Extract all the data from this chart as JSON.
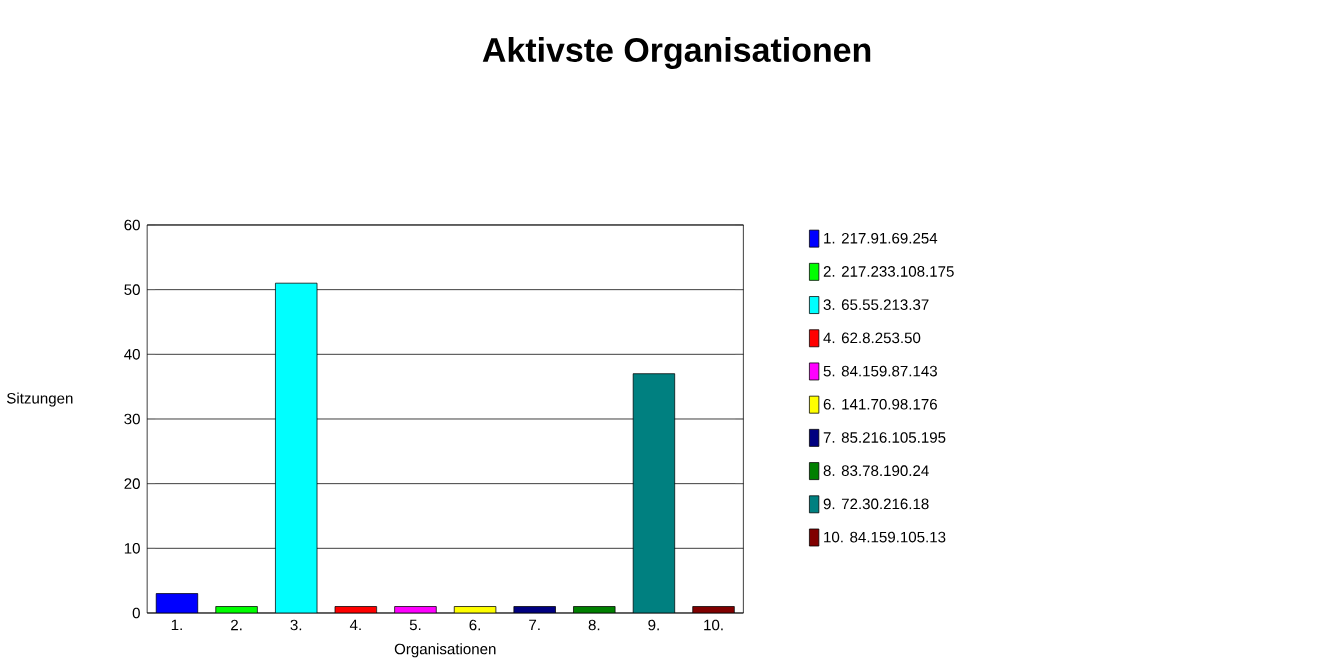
{
  "chart_data": {
    "type": "bar",
    "title": "Aktivste Organisationen",
    "xlabel": "Organisationen",
    "ylabel": "Sitzungen",
    "categories": [
      "1.",
      "2.",
      "3.",
      "4.",
      "5.",
      "6.",
      "7.",
      "8.",
      "9.",
      "10."
    ],
    "series": [
      {
        "name": "1. 217.91.69.254",
        "color": "#0000ff",
        "values": [
          3,
          null,
          null,
          null,
          null,
          null,
          null,
          null,
          null,
          null
        ]
      },
      {
        "name": "2. 217.233.108.175",
        "color": "#00ff00",
        "values": [
          null,
          1,
          null,
          null,
          null,
          null,
          null,
          null,
          null,
          null
        ]
      },
      {
        "name": "3. 65.55.213.37",
        "color": "#00ffff",
        "values": [
          null,
          null,
          51,
          null,
          null,
          null,
          null,
          null,
          null,
          null
        ]
      },
      {
        "name": "4. 62.8.253.50",
        "color": "#ff0000",
        "values": [
          null,
          null,
          null,
          1,
          null,
          null,
          null,
          null,
          null,
          null
        ]
      },
      {
        "name": "5. 84.159.87.143",
        "color": "#ff00ff",
        "values": [
          null,
          null,
          null,
          null,
          1,
          null,
          null,
          null,
          null,
          null
        ]
      },
      {
        "name": "6. 141.70.98.176",
        "color": "#ffff00",
        "values": [
          null,
          null,
          null,
          null,
          null,
          1,
          null,
          null,
          null,
          null
        ]
      },
      {
        "name": "7. 85.216.105.195",
        "color": "#000080",
        "values": [
          null,
          null,
          null,
          null,
          null,
          null,
          1,
          null,
          null,
          null
        ]
      },
      {
        "name": "8. 83.78.190.24",
        "color": "#008000",
        "values": [
          null,
          null,
          null,
          null,
          null,
          null,
          null,
          1,
          null,
          null
        ]
      },
      {
        "name": "9. 72.30.216.18",
        "color": "#008080",
        "values": [
          null,
          null,
          null,
          null,
          null,
          null,
          null,
          null,
          37,
          null
        ]
      },
      {
        "name": "10. 84.159.105.13",
        "color": "#800000",
        "values": [
          null,
          null,
          null,
          null,
          null,
          null,
          null,
          null,
          null,
          1
        ]
      }
    ],
    "ylim": [
      0,
      60
    ],
    "yticks": [
      0,
      10,
      20,
      30,
      40,
      50,
      60
    ],
    "grid": "y",
    "legend": "right"
  }
}
